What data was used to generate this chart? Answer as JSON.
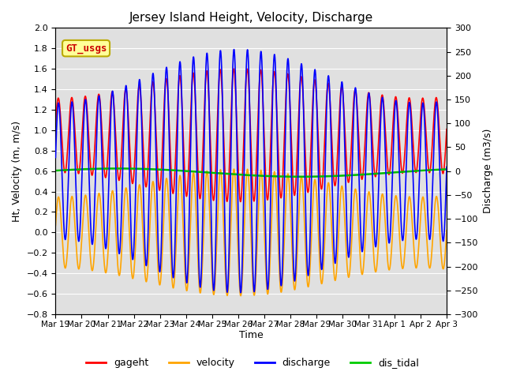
{
  "title": "Jersey Island Height, Velocity, Discharge",
  "ylabel_left": "Ht, Velocity (m, m/s)",
  "ylabel_right": "Discharge (m3/s)",
  "xlabel": "Time",
  "ylim_left": [
    -0.8,
    2.0
  ],
  "ylim_right": [
    -300,
    300
  ],
  "yticks_left": [
    -0.8,
    -0.6,
    -0.4,
    -0.2,
    0.0,
    0.2,
    0.4,
    0.6,
    0.8,
    1.0,
    1.2,
    1.4,
    1.6,
    1.8,
    2.0
  ],
  "yticks_right": [
    -300,
    -250,
    -200,
    -150,
    -100,
    -50,
    0,
    50,
    100,
    150,
    200,
    250,
    300
  ],
  "xtick_labels": [
    "Mar 19",
    "Mar 20",
    "Mar 21",
    "Mar 22",
    "Mar 23",
    "Mar 24",
    "Mar 25",
    "Mar 26",
    "Mar 27",
    "Mar 28",
    "Mar 29",
    "Mar 30",
    "Mar 31",
    "Apr 1",
    "Apr 2",
    "Apr 3"
  ],
  "legend_entries": [
    "gageht",
    "velocity",
    "discharge",
    "dis_tidal"
  ],
  "legend_colors": [
    "#ff0000",
    "#ffa500",
    "#0000ff",
    "#00cc00"
  ],
  "gt_usgs_text": "GT_usgs",
  "gt_usgs_text_color": "#cc0000",
  "gt_usgs_bg": "#ffff99",
  "gt_usgs_border": "#bbaa00",
  "gageht_color": "#ff0000",
  "velocity_color": "#ffa500",
  "discharge_color": "#0000ff",
  "dis_tidal_color": "#00bb00",
  "background_color": "#e0e0e0",
  "tidal_period_hours": 12.42,
  "num_days": 15,
  "velocity_amplitude": 0.62,
  "discharge_amplitude": 255,
  "dis_tidal_mean": 0.585,
  "dis_tidal_long_amp": 0.04,
  "dis_tidal_long_period_days": 14.0,
  "linewidth_gageht": 1.2,
  "linewidth_velocity": 1.2,
  "linewidth_discharge": 1.2,
  "linewidth_dis_tidal": 1.8,
  "figsize": [
    6.4,
    4.8
  ],
  "dpi": 100
}
